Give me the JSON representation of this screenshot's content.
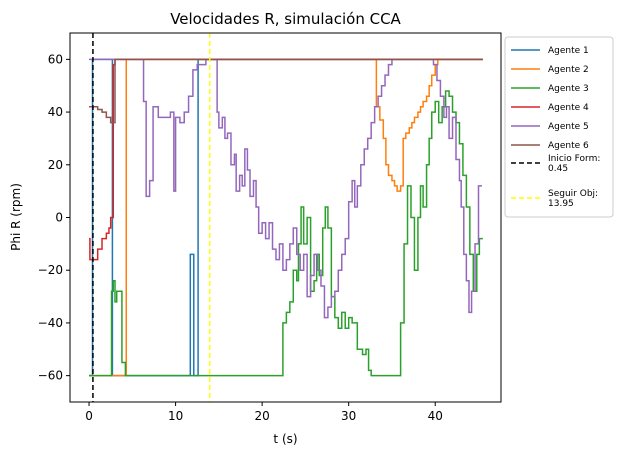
{
  "chart_data": {
    "type": "line",
    "title": "Velocidades R, simulación CCA",
    "xlabel": "t (s)",
    "ylabel": "Phi R (rpm)",
    "xlim": [
      -2.2,
      47.6
    ],
    "ylim": [
      -70,
      70
    ],
    "xticks": [
      0,
      10,
      20,
      30,
      40
    ],
    "yticks": [
      -60,
      -40,
      -20,
      0,
      20,
      40,
      60
    ],
    "grid": false,
    "legend_position": "outside-right",
    "series": [
      {
        "name": "Agente 1",
        "color": "#1f77b4",
        "points": [
          [
            0,
            -60
          ],
          [
            0.4,
            60
          ],
          [
            2,
            60
          ],
          [
            2.1,
            60
          ],
          [
            2.2,
            60
          ],
          [
            2.4,
            60
          ],
          [
            2.5,
            60
          ],
          [
            2.7,
            -60
          ],
          [
            11.6,
            -60
          ],
          [
            11.7,
            -14
          ],
          [
            12,
            -14
          ],
          [
            12.1,
            -60
          ],
          [
            12.5,
            -60
          ],
          [
            12.6,
            60
          ],
          [
            13.9,
            60
          ],
          [
            14,
            60
          ],
          [
            45.5,
            60
          ]
        ]
      },
      {
        "name": "Agente 2",
        "color": "#ff7f0e",
        "points": [
          [
            0,
            -60
          ],
          [
            0.2,
            -60
          ],
          [
            3.5,
            -60
          ],
          [
            3.6,
            -60
          ],
          [
            3.8,
            -60
          ],
          [
            4.3,
            60
          ],
          [
            33,
            60
          ],
          [
            33.2,
            42
          ],
          [
            33.6,
            37
          ],
          [
            34,
            30
          ],
          [
            34.3,
            20
          ],
          [
            34.6,
            16
          ],
          [
            35,
            14
          ],
          [
            35.3,
            12
          ],
          [
            35.6,
            10
          ],
          [
            36,
            12
          ],
          [
            36.3,
            30
          ],
          [
            36.6,
            32
          ],
          [
            37,
            34
          ],
          [
            37.3,
            36
          ],
          [
            37.6,
            38
          ],
          [
            38,
            40
          ],
          [
            38.3,
            42
          ],
          [
            38.6,
            44
          ],
          [
            39,
            46
          ],
          [
            39.3,
            50
          ],
          [
            39.6,
            54
          ],
          [
            40,
            58
          ],
          [
            40.3,
            60
          ],
          [
            45.5,
            60
          ]
        ]
      },
      {
        "name": "Agente 3",
        "color": "#2ca02c",
        "points": [
          [
            0,
            -60
          ],
          [
            2.5,
            -60
          ],
          [
            2.6,
            -28
          ],
          [
            2.8,
            -24
          ],
          [
            3,
            -32
          ],
          [
            3.2,
            -28
          ],
          [
            3.5,
            -28
          ],
          [
            3.8,
            -55
          ],
          [
            4.2,
            -60
          ],
          [
            22.3,
            -60
          ],
          [
            22.4,
            -40
          ],
          [
            22.8,
            -36
          ],
          [
            23.2,
            -32
          ],
          [
            23.6,
            -20
          ],
          [
            24,
            -24
          ],
          [
            24.2,
            -10
          ],
          [
            24.5,
            4
          ],
          [
            24.8,
            -10
          ],
          [
            25.2,
            0
          ],
          [
            25.6,
            -28
          ],
          [
            26,
            -24
          ],
          [
            26.3,
            -14
          ],
          [
            26.6,
            -22
          ],
          [
            27,
            -4
          ],
          [
            27.3,
            4
          ],
          [
            27.6,
            -4
          ],
          [
            28,
            -30
          ],
          [
            28.4,
            -38
          ],
          [
            28.8,
            -42
          ],
          [
            29.2,
            -36
          ],
          [
            29.6,
            -42
          ],
          [
            30,
            -38
          ],
          [
            30.4,
            -40
          ],
          [
            30.7,
            -40
          ],
          [
            31,
            -50
          ],
          [
            31.3,
            -50
          ],
          [
            31.6,
            -52
          ],
          [
            32,
            -50
          ],
          [
            32.3,
            -58
          ],
          [
            32.6,
            -60
          ],
          [
            35.5,
            -60
          ],
          [
            36,
            -40
          ],
          [
            36.4,
            -10
          ],
          [
            36.8,
            12
          ],
          [
            37.2,
            0
          ],
          [
            37.6,
            -20
          ],
          [
            38,
            0
          ],
          [
            38.3,
            12
          ],
          [
            38.6,
            4
          ],
          [
            39,
            20
          ],
          [
            39.3,
            30
          ],
          [
            39.6,
            40
          ],
          [
            40,
            44
          ],
          [
            40.4,
            36
          ],
          [
            40.8,
            42
          ],
          [
            41.2,
            48
          ],
          [
            41.6,
            46
          ],
          [
            42,
            40
          ],
          [
            42.4,
            36
          ],
          [
            42.8,
            28
          ],
          [
            43.2,
            16
          ],
          [
            43.6,
            4
          ],
          [
            44,
            -14
          ],
          [
            44.4,
            -28
          ],
          [
            44.8,
            -14
          ],
          [
            45.1,
            -8
          ],
          [
            45.5,
            -8
          ]
        ]
      },
      {
        "name": "Agente 4",
        "color": "#d62728",
        "points": [
          [
            0,
            -8
          ],
          [
            0.1,
            -16
          ],
          [
            0.5,
            -16
          ],
          [
            1,
            -12
          ],
          [
            1.5,
            -8
          ],
          [
            2,
            -6
          ],
          [
            2.3,
            -4
          ],
          [
            2.5,
            0
          ],
          [
            2.8,
            58
          ],
          [
            3,
            60
          ],
          [
            45.5,
            60
          ]
        ]
      },
      {
        "name": "Agente 5",
        "color": "#9467bd",
        "points": [
          [
            0,
            60
          ],
          [
            6,
            60
          ],
          [
            6.3,
            44
          ],
          [
            6.6,
            8
          ],
          [
            7,
            14
          ],
          [
            7.4,
            42
          ],
          [
            8,
            38
          ],
          [
            9,
            38
          ],
          [
            9.4,
            40
          ],
          [
            9.8,
            10
          ],
          [
            10,
            38
          ],
          [
            10.5,
            36
          ],
          [
            11,
            40
          ],
          [
            11.5,
            46
          ],
          [
            12,
            56
          ],
          [
            12.5,
            58
          ],
          [
            13,
            58
          ],
          [
            13.5,
            60
          ],
          [
            14.5,
            60
          ],
          [
            14.8,
            40
          ],
          [
            15,
            34
          ],
          [
            15.4,
            38
          ],
          [
            15.7,
            30
          ],
          [
            16,
            32
          ],
          [
            16.4,
            20
          ],
          [
            16.8,
            24
          ],
          [
            17,
            10
          ],
          [
            17.4,
            16
          ],
          [
            17.7,
            12
          ],
          [
            18,
            26
          ],
          [
            18.3,
            18
          ],
          [
            18.6,
            8
          ],
          [
            19,
            14
          ],
          [
            19.3,
            4
          ],
          [
            19.6,
            -6
          ],
          [
            20,
            -2
          ],
          [
            20.4,
            -8
          ],
          [
            20.8,
            -2
          ],
          [
            21.2,
            -12
          ],
          [
            21.6,
            -16
          ],
          [
            22,
            -10
          ],
          [
            22.4,
            -20
          ],
          [
            22.8,
            -16
          ],
          [
            23.2,
            -10
          ],
          [
            23.6,
            -4
          ],
          [
            24,
            -14
          ],
          [
            24.4,
            -20
          ],
          [
            24.8,
            -14
          ],
          [
            25.2,
            -30
          ],
          [
            25.6,
            -22
          ],
          [
            26,
            -14
          ],
          [
            26.4,
            -20
          ],
          [
            26.8,
            -26
          ],
          [
            27.2,
            -38
          ],
          [
            27.6,
            -34
          ],
          [
            28,
            -30
          ],
          [
            28.4,
            -28
          ],
          [
            28.8,
            -20
          ],
          [
            29.2,
            -14
          ],
          [
            29.6,
            -8
          ],
          [
            30,
            6
          ],
          [
            30.4,
            14
          ],
          [
            30.7,
            4
          ],
          [
            31,
            12
          ],
          [
            31.4,
            20
          ],
          [
            31.8,
            26
          ],
          [
            32.2,
            30
          ],
          [
            32.6,
            36
          ],
          [
            33,
            42
          ],
          [
            33.4,
            46
          ],
          [
            33.8,
            50
          ],
          [
            34.2,
            54
          ],
          [
            34.6,
            58
          ],
          [
            35,
            60
          ],
          [
            39.5,
            60
          ],
          [
            39.8,
            58
          ],
          [
            40.2,
            52
          ],
          [
            40.6,
            46
          ],
          [
            41,
            38
          ],
          [
            41.3,
            42
          ],
          [
            41.6,
            30
          ],
          [
            42,
            38
          ],
          [
            42.4,
            22
          ],
          [
            42.8,
            14
          ],
          [
            43,
            4
          ],
          [
            43.3,
            -14
          ],
          [
            43.6,
            -24
          ],
          [
            43.9,
            -36
          ],
          [
            44.2,
            -28
          ],
          [
            44.6,
            -10
          ],
          [
            45,
            12
          ],
          [
            45.4,
            12
          ]
        ]
      },
      {
        "name": "Agente 6",
        "color": "#8c564b",
        "points": [
          [
            0,
            42
          ],
          [
            0.5,
            42
          ],
          [
            1,
            41
          ],
          [
            1.5,
            40
          ],
          [
            2,
            38
          ],
          [
            2.5,
            36
          ],
          [
            3,
            60
          ],
          [
            45.5,
            60
          ]
        ]
      }
    ],
    "reference_lines": [
      {
        "name": "Inicio Form:\n0.45",
        "label_line1": "Inicio Form:",
        "label_line2": "0.45",
        "x": 0.45,
        "color": "#000000"
      },
      {
        "name": "Seguir Obj:\n13.95",
        "label_line1": "Seguir Obj:",
        "label_line2": "13.95",
        "x": 13.95,
        "color": "#ffff00"
      }
    ]
  }
}
